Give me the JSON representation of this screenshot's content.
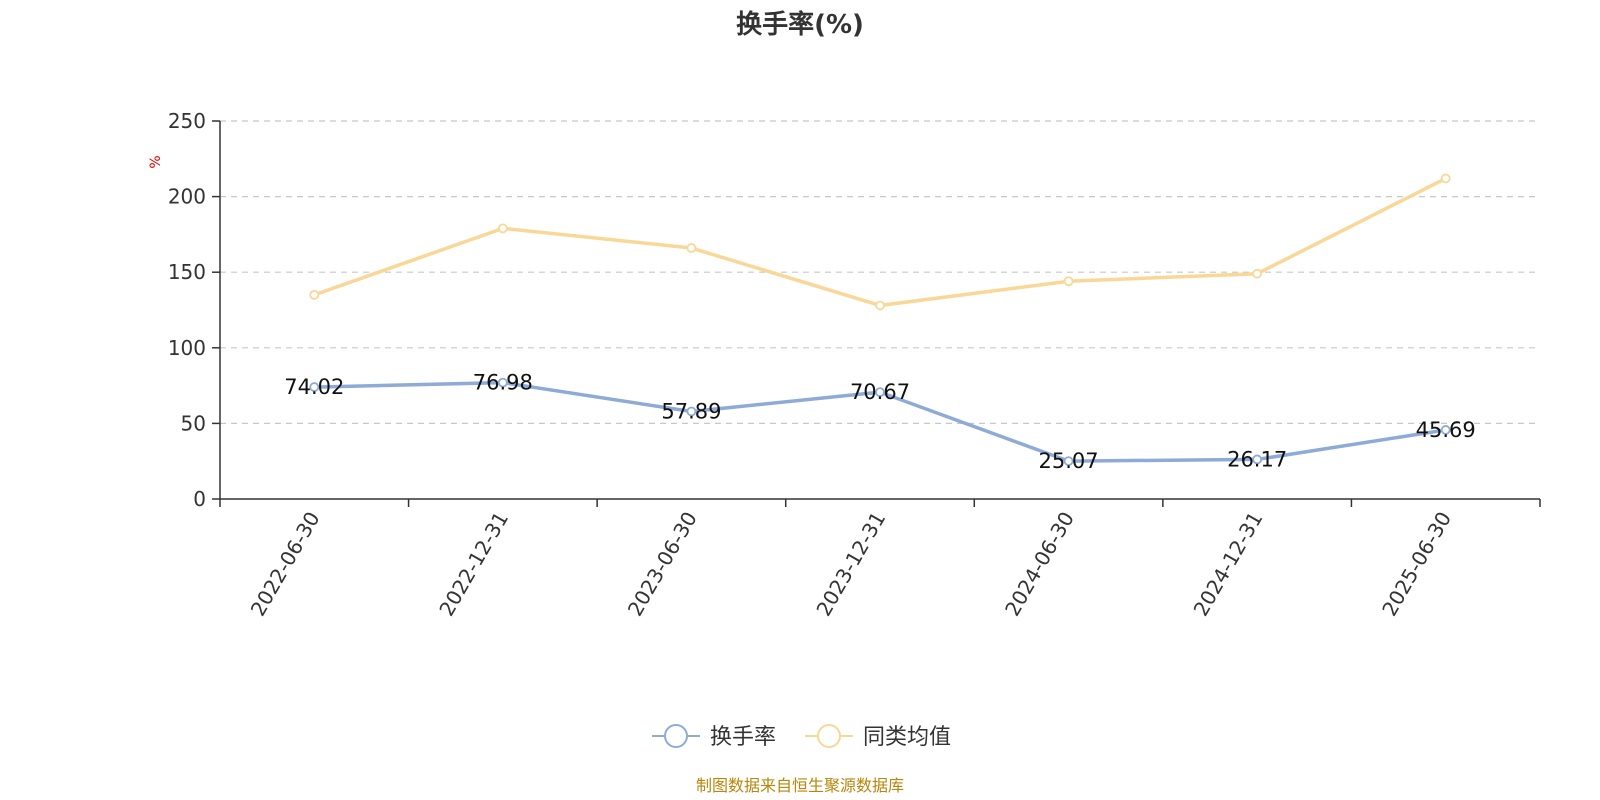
{
  "chart_data": {
    "type": "line",
    "title": "换手率(%)",
    "y_unit": "%",
    "categories": [
      "2022-06-30",
      "2022-12-31",
      "2023-06-30",
      "2023-12-31",
      "2024-06-30",
      "2024-12-31",
      "2025-06-30"
    ],
    "ylim": [
      0,
      250
    ],
    "yticks": [
      0,
      50,
      100,
      150,
      200,
      250
    ],
    "grid": true,
    "legend_position": "bottom-center",
    "series": [
      {
        "name": "换手率",
        "color": "#8eaad6",
        "values": [
          74.02,
          76.98,
          57.89,
          70.67,
          25.07,
          26.17,
          45.69
        ],
        "data_labels": [
          "74.02",
          "76.98",
          "57.89",
          "70.67",
          "25.07",
          "26.17",
          "45.69"
        ]
      },
      {
        "name": "同类均值",
        "color": "#f9d796",
        "values": [
          135,
          179,
          166,
          128,
          144,
          149,
          212
        ]
      }
    ]
  },
  "source_text": "制图数据来自恒生聚源数据库"
}
